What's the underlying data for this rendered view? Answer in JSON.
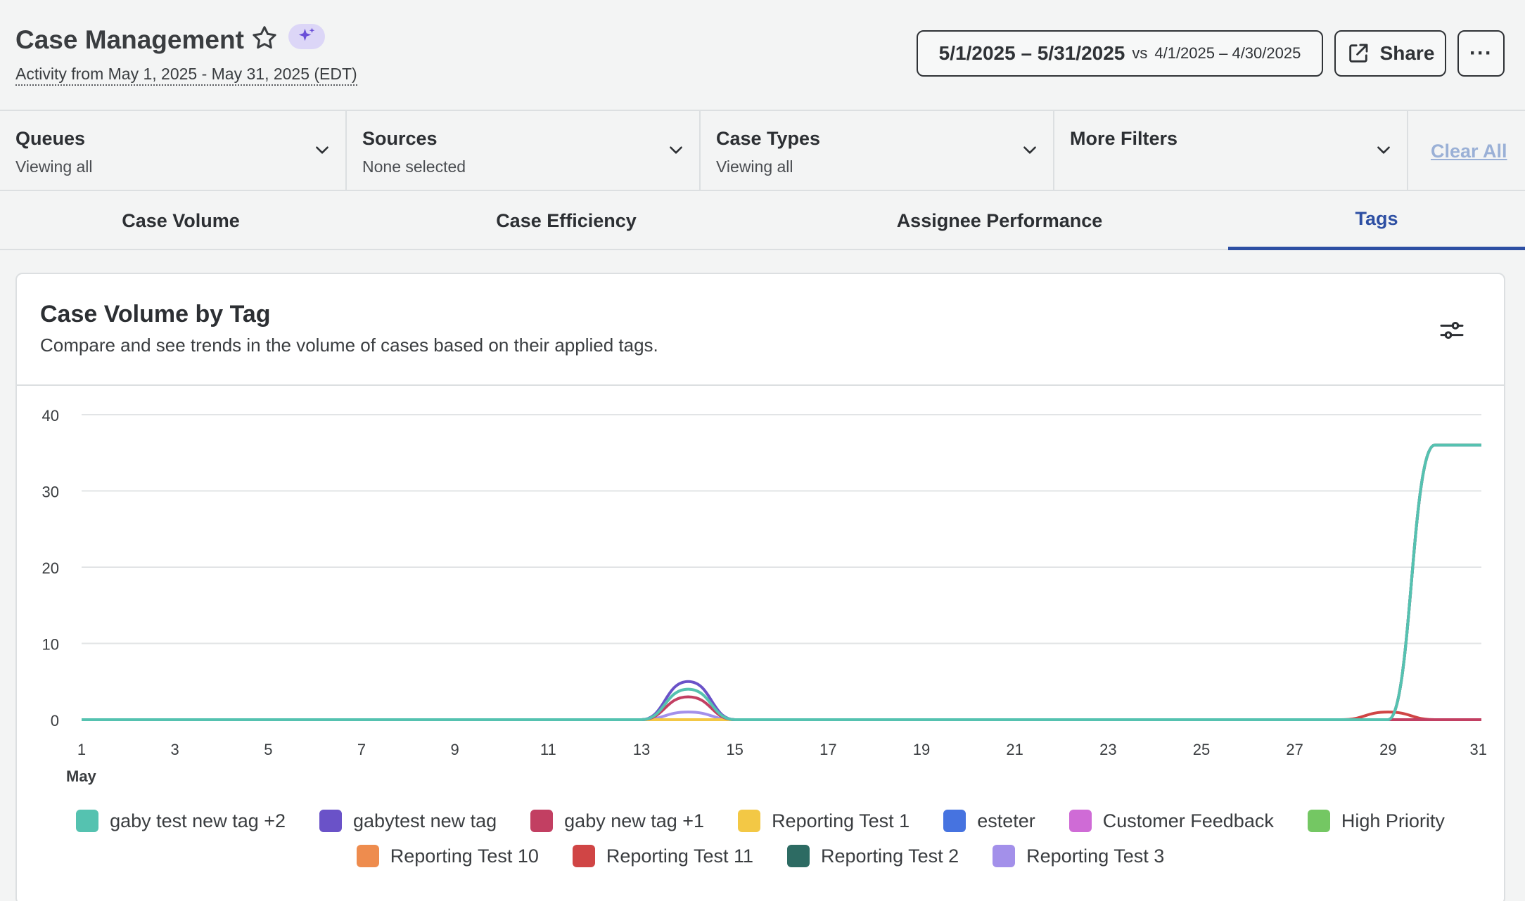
{
  "header": {
    "title": "Case Management",
    "subtitle": "Activity from May 1, 2025 - May 31, 2025 (EDT)",
    "date_range": "5/1/2025 – 5/31/2025",
    "vs_label": "vs",
    "compare_range": "4/1/2025 – 4/30/2025",
    "share_label": "Share",
    "more_label": "···"
  },
  "filters": [
    {
      "label": "Queues",
      "value": "Viewing all"
    },
    {
      "label": "Sources",
      "value": "None selected"
    },
    {
      "label": "Case Types",
      "value": "Viewing all"
    },
    {
      "label": "More Filters",
      "value": ""
    }
  ],
  "clear_all": "Clear All",
  "tabs": [
    {
      "label": "Case Volume",
      "active": false
    },
    {
      "label": "Case Efficiency",
      "active": false
    },
    {
      "label": "Assignee Performance",
      "active": false
    },
    {
      "label": "Tags",
      "active": true
    }
  ],
  "card": {
    "title": "Case Volume by Tag",
    "description": "Compare and see trends in the volume of cases based on their applied tags."
  },
  "colors": {
    "accent": "#2d4fa3",
    "ai_badge": "#dcd6f7",
    "ai_icon": "#6a4fd8"
  },
  "chart_data": {
    "type": "line",
    "x": [
      1,
      2,
      3,
      4,
      5,
      6,
      7,
      8,
      9,
      10,
      11,
      12,
      13,
      14,
      15,
      16,
      17,
      18,
      19,
      20,
      21,
      22,
      23,
      24,
      25,
      26,
      27,
      28,
      29,
      30,
      31
    ],
    "x_ticks": [
      "1",
      "3",
      "5",
      "7",
      "9",
      "11",
      "13",
      "15",
      "17",
      "19",
      "21",
      "23",
      "25",
      "27",
      "29",
      "31"
    ],
    "x_month_label": "May",
    "ylim": [
      0,
      40
    ],
    "y_ticks": [
      "0",
      "10",
      "20",
      "30",
      "40"
    ],
    "grid": true,
    "legend_position": "bottom",
    "series": [
      {
        "name": "gaby test new tag +2",
        "color": "#55c2b0",
        "values": [
          0,
          0,
          0,
          0,
          0,
          0,
          0,
          0,
          0,
          0,
          0,
          0,
          0,
          4,
          0,
          0,
          0,
          0,
          0,
          0,
          0,
          0,
          0,
          0,
          0,
          0,
          0,
          0,
          0,
          36,
          36
        ]
      },
      {
        "name": "gabytest new tag",
        "color": "#6a52c8",
        "values": [
          0,
          0,
          0,
          0,
          0,
          0,
          0,
          0,
          0,
          0,
          0,
          0,
          0,
          5,
          0,
          0,
          0,
          0,
          0,
          0,
          0,
          0,
          0,
          0,
          0,
          0,
          0,
          0,
          0,
          36,
          36
        ]
      },
      {
        "name": "gaby new tag +1",
        "color": "#c23f62",
        "values": [
          0,
          0,
          0,
          0,
          0,
          0,
          0,
          0,
          0,
          0,
          0,
          0,
          0,
          3,
          0,
          0,
          0,
          0,
          0,
          0,
          0,
          0,
          0,
          0,
          0,
          0,
          0,
          0,
          0,
          0,
          0
        ]
      },
      {
        "name": "Reporting Test 1",
        "color": "#f3c845",
        "values": [
          0,
          0,
          0,
          0,
          0,
          0,
          0,
          0,
          0,
          0,
          0,
          0,
          0,
          0,
          0,
          0,
          0,
          0,
          0,
          0,
          0,
          0,
          0,
          0,
          0,
          0,
          0,
          0,
          0,
          36,
          36
        ]
      },
      {
        "name": "esteter",
        "color": "#4673e0",
        "values": [
          0,
          0,
          0,
          0,
          0,
          0,
          0,
          0,
          0,
          0,
          0,
          0,
          0,
          0,
          0,
          0,
          0,
          0,
          0,
          0,
          0,
          0,
          0,
          0,
          0,
          0,
          0,
          0,
          0,
          36,
          36
        ]
      },
      {
        "name": "Customer Feedback",
        "color": "#cf6bd6",
        "values": [
          0,
          0,
          0,
          0,
          0,
          0,
          0,
          0,
          0,
          0,
          0,
          0,
          0,
          0,
          0,
          0,
          0,
          0,
          0,
          0,
          0,
          0,
          0,
          0,
          0,
          0,
          0,
          0,
          0,
          0,
          0
        ]
      },
      {
        "name": "High Priority",
        "color": "#74c763",
        "values": [
          0,
          0,
          0,
          0,
          0,
          0,
          0,
          0,
          0,
          0,
          0,
          0,
          0,
          0,
          0,
          0,
          0,
          0,
          0,
          0,
          0,
          0,
          0,
          0,
          0,
          0,
          0,
          0,
          0,
          36,
          36
        ]
      },
      {
        "name": "Reporting Test 10",
        "color": "#ee8c4e",
        "values": [
          0,
          0,
          0,
          0,
          0,
          0,
          0,
          0,
          0,
          0,
          0,
          0,
          0,
          0,
          0,
          0,
          0,
          0,
          0,
          0,
          0,
          0,
          0,
          0,
          0,
          0,
          0,
          0,
          0,
          36,
          36
        ]
      },
      {
        "name": "Reporting Test 11",
        "color": "#d04545",
        "values": [
          0,
          0,
          0,
          0,
          0,
          0,
          0,
          0,
          0,
          0,
          0,
          0,
          0,
          0,
          0,
          0,
          0,
          0,
          0,
          0,
          0,
          0,
          0,
          0,
          0,
          0,
          0,
          0,
          1,
          0,
          0
        ]
      },
      {
        "name": "Reporting Test 2",
        "color": "#2d6b63",
        "values": [
          0,
          0,
          0,
          0,
          0,
          0,
          0,
          0,
          0,
          0,
          0,
          0,
          0,
          0,
          0,
          0,
          0,
          0,
          0,
          0,
          0,
          0,
          0,
          0,
          0,
          0,
          0,
          0,
          0,
          0,
          0
        ]
      },
      {
        "name": "Reporting Test 3",
        "color": "#a390ea",
        "values": [
          0,
          0,
          0,
          0,
          0,
          0,
          0,
          0,
          0,
          0,
          0,
          0,
          0,
          1,
          0,
          0,
          0,
          0,
          0,
          0,
          0,
          0,
          0,
          0,
          0,
          0,
          0,
          0,
          0,
          0,
          0
        ]
      }
    ]
  }
}
